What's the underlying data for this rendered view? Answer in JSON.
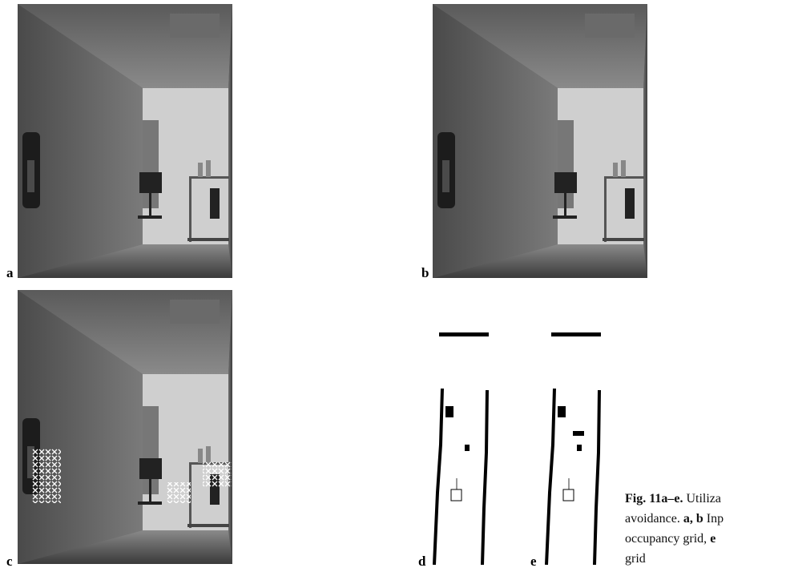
{
  "panels": [
    {
      "label": "a"
    },
    {
      "label": "b"
    },
    {
      "label": "c"
    },
    {
      "label": "d"
    },
    {
      "label": "e"
    }
  ],
  "caption": {
    "lines": [
      [
        {
          "text": "Fig. 11a–e.",
          "bold": true
        },
        {
          "text": " Utiliza",
          "bold": false
        }
      ],
      [
        {
          "text": "avoidance. ",
          "bold": false
        },
        {
          "text": "a, b",
          "bold": true
        },
        {
          "text": " Inp",
          "bold": false
        }
      ],
      [
        {
          "text": "occupancy grid, ",
          "bold": false
        },
        {
          "text": "e",
          "bold": true
        }
      ],
      [
        {
          "text": "grid",
          "bold": false
        }
      ]
    ]
  }
}
